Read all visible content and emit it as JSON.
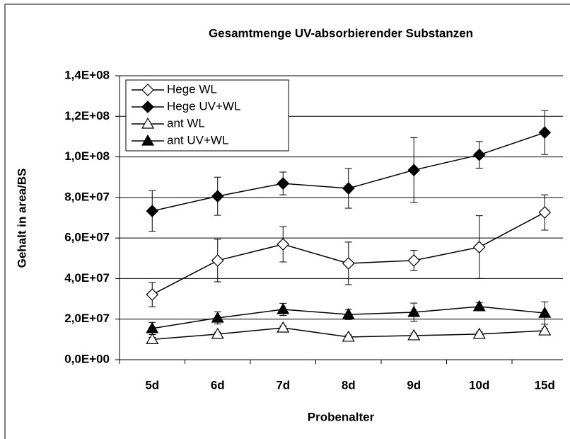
{
  "chart_data": {
    "type": "line",
    "title": "Gesamtmenge UV-absorbierender Substanzen",
    "xlabel": "Probenalter",
    "ylabel": "Gehalt in area/BS",
    "categories": [
      "5d",
      "6d",
      "7d",
      "8d",
      "9d",
      "10d",
      "15d"
    ],
    "series": [
      {
        "name": "Hege WL",
        "color": "#000000",
        "marker": "diamond",
        "filled": false,
        "values": [
          32100000,
          48900000,
          56900000,
          47500000,
          48900000,
          55500000,
          72600000
        ],
        "errors": [
          6000000,
          10500000,
          8700000,
          10500000,
          5000000,
          15500000,
          8700000
        ]
      },
      {
        "name": "Hege UV+WL",
        "color": "#000000",
        "marker": "diamond",
        "filled": true,
        "values": [
          73300000,
          80600000,
          86900000,
          84500000,
          93500000,
          101000000,
          112000000
        ],
        "errors": [
          10000000,
          9400000,
          5600000,
          9800000,
          16000000,
          6600000,
          10800000
        ]
      },
      {
        "name": "ant WL",
        "color": "#000000",
        "marker": "triangle",
        "filled": false,
        "values": [
          10000000,
          12600000,
          15700000,
          11200000,
          11900000,
          12600000,
          14300000
        ],
        "errors": [
          1000000,
          1000000,
          1000000,
          1000000,
          1000000,
          1000000,
          1000000
        ]
      },
      {
        "name": "ant UV+WL",
        "color": "#000000",
        "marker": "triangle",
        "filled": true,
        "values": [
          15400000,
          20600000,
          24800000,
          22300000,
          23400000,
          26200000,
          23000000
        ],
        "errors": [
          3000000,
          3000000,
          3000000,
          2500000,
          4500000,
          2000000,
          5500000
        ]
      }
    ],
    "ylim": [
      0,
      140000000
    ],
    "yticks": [
      {
        "value": 0,
        "label": "0,0E+00"
      },
      {
        "value": 20000000,
        "label": "2,0E+07"
      },
      {
        "value": 40000000,
        "label": "4,0E+07"
      },
      {
        "value": 60000000,
        "label": "6,0E+07"
      },
      {
        "value": 80000000,
        "label": "8,0E+07"
      },
      {
        "value": 100000000,
        "label": "1,0E+08"
      },
      {
        "value": 120000000,
        "label": "1,2E+08"
      },
      {
        "value": 140000000,
        "label": "1,4E+08"
      }
    ],
    "grid": true,
    "legend": "upper left"
  }
}
